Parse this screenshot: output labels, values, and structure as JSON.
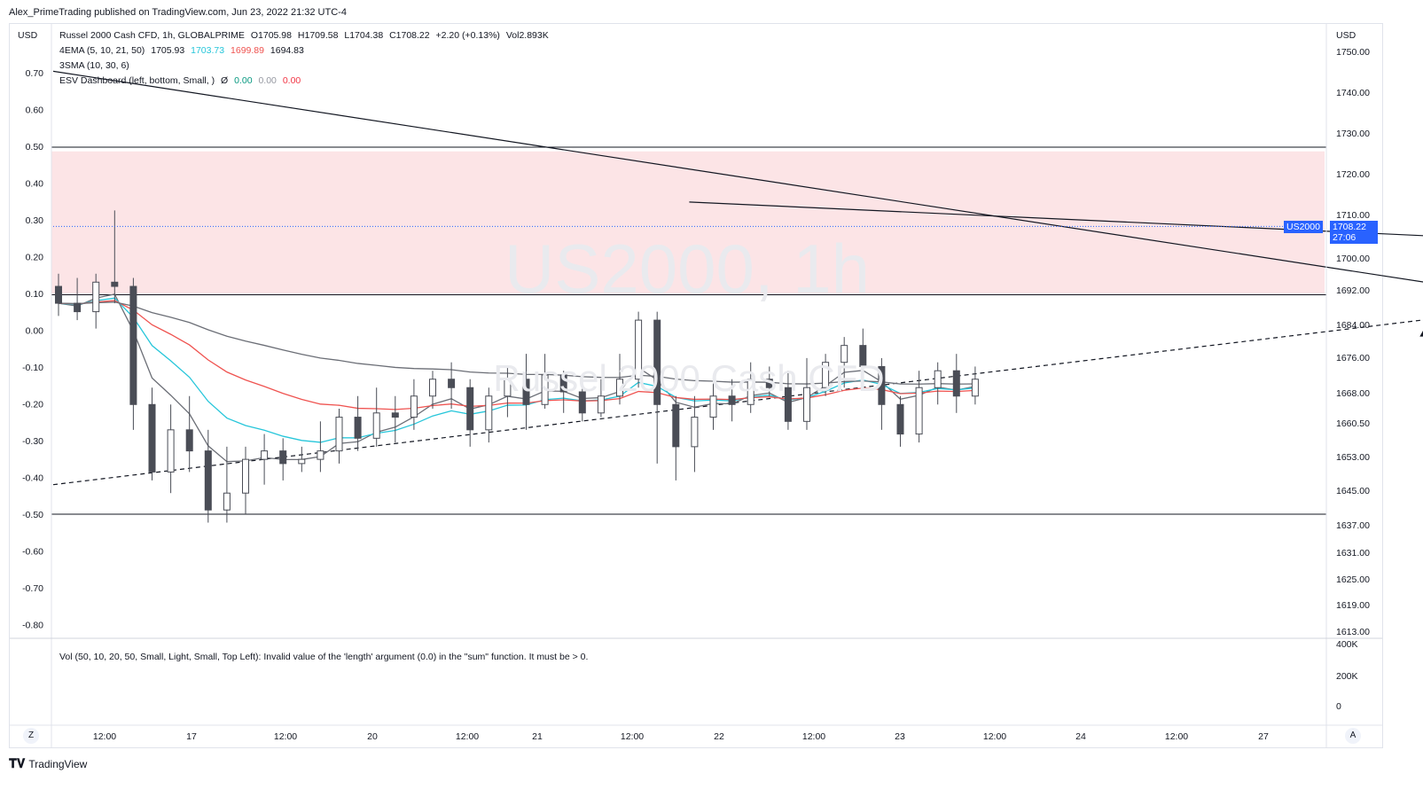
{
  "header": {
    "publish_line": "Alex_PrimeTrading published on TradingView.com, Jun 23, 2022 21:32 UTC-4"
  },
  "legend": {
    "title": "Russel 2000 Cash CFD, 1h, GLOBALPRIME",
    "open": "O1705.98",
    "high": "H1709.58",
    "low": "L1704.38",
    "close": "C1708.22",
    "change": "+2.20 (+0.13%)",
    "vol": "Vol2.893K",
    "ema_label": "4EMA (5, 10, 21, 50)",
    "ema_values": [
      "1705.93",
      "1703.73",
      "1699.89",
      "1694.83"
    ],
    "ema_colors": [
      "#131722",
      "#26c6da",
      "#ef5350",
      "#131722"
    ],
    "sma_label": "3SMA (10, 30, 6)",
    "esv_label": "ESV Dashboard (left, bottom, Small, )",
    "esv_symbol": "Ø",
    "esv_values": [
      "0.00",
      "0.00",
      "0.00"
    ],
    "esv_colors": [
      "#089981",
      "#9598a1",
      "#f23645"
    ]
  },
  "watermark": {
    "symbol": "US2000, 1h",
    "name": "Russel 2000 Cash CFD"
  },
  "left_axis": {
    "unit": "USD",
    "ticks": [
      "0.70",
      "0.60",
      "0.50",
      "0.40",
      "0.30",
      "0.20",
      "0.10",
      "0.00",
      "-0.10",
      "-0.20",
      "-0.30",
      "-0.40",
      "-0.50",
      "-0.60",
      "-0.70",
      "-0.80"
    ]
  },
  "right_axis": {
    "unit": "USD",
    "ticks": [
      "1750.00",
      "1740.00",
      "1730.00",
      "1720.00",
      "1710.00",
      "1700.00",
      "1692.00",
      "1684.00",
      "1676.00",
      "1668.00",
      "1660.50",
      "1653.00",
      "1645.00",
      "1637.00",
      "1631.00",
      "1625.00",
      "1619.00",
      "1613.00"
    ],
    "vol_ticks": [
      "400K",
      "200K",
      "0"
    ],
    "symbol_tag": "US2000",
    "price_tag": "1708.22",
    "countdown": "27:06"
  },
  "time_axis": {
    "labels": [
      "12:00",
      "17",
      "12:00",
      "20",
      "12:00",
      "21",
      "12:00",
      "22",
      "12:00",
      "23",
      "12:00",
      "24",
      "12:00",
      "27"
    ]
  },
  "volume_pane": {
    "message": "Vol (50, 10, 20, 50, Small, Light, Small, Top Left): Invalid value of the 'length' argument (0.0) in the \"sum\" function. It must be > 0."
  },
  "buttons": {
    "z": "Z",
    "a": "A"
  },
  "footer": {
    "brand": "TradingView"
  },
  "colors": {
    "zone_fill": "#fce4e6",
    "bull_candle": "#ffffff",
    "bear_candle": "#4a4d56",
    "ema_fast": "#26c6da",
    "ema_mid": "#ef5350",
    "ema_slow": "#6b6e76"
  },
  "chart_data": {
    "type": "candlestick",
    "symbol": "US2000",
    "timeframe": "1h",
    "ylim": [
      1611,
      1756
    ],
    "zone": [
      1692,
      1726
    ],
    "horizontal_lines": [
      1727,
      1692,
      1640
    ],
    "resistance_line": [
      [
        0,
        1745
      ],
      [
        95,
        1680
      ]
    ],
    "support_line": [
      [
        0,
        1647
      ],
      [
        86,
        1693
      ]
    ],
    "neckline": [
      [
        34,
        1714
      ],
      [
        78,
        1705
      ]
    ],
    "arrow_at": [
      73,
      1684
    ],
    "last_close": 1708.22,
    "candles": [
      [
        0,
        1694,
        1690,
        1697,
        1687
      ],
      [
        1,
        1690,
        1688,
        1696,
        1686
      ],
      [
        2,
        1688,
        1695,
        1697,
        1684
      ],
      [
        3,
        1695,
        1694,
        1712,
        1690
      ],
      [
        4,
        1694,
        1666,
        1696,
        1660
      ],
      [
        5,
        1666,
        1650,
        1670,
        1648
      ],
      [
        6,
        1650,
        1660,
        1666,
        1645
      ],
      [
        7,
        1660,
        1655,
        1668,
        1650
      ],
      [
        8,
        1655,
        1641,
        1660,
        1638
      ],
      [
        9,
        1641,
        1645,
        1656,
        1638
      ],
      [
        10,
        1645,
        1653,
        1656,
        1640
      ],
      [
        11,
        1653,
        1655,
        1659,
        1647
      ],
      [
        12,
        1655,
        1652,
        1658,
        1648
      ],
      [
        13,
        1652,
        1653,
        1656,
        1650
      ],
      [
        14,
        1653,
        1655,
        1662,
        1650
      ],
      [
        15,
        1655,
        1663,
        1665,
        1652
      ],
      [
        16,
        1663,
        1658,
        1668,
        1655
      ],
      [
        17,
        1658,
        1664,
        1670,
        1656
      ],
      [
        18,
        1664,
        1663,
        1668,
        1657
      ],
      [
        19,
        1663,
        1668,
        1672,
        1660
      ],
      [
        20,
        1668,
        1672,
        1674,
        1665
      ],
      [
        21,
        1672,
        1670,
        1676,
        1665
      ],
      [
        22,
        1670,
        1660,
        1672,
        1656
      ],
      [
        23,
        1660,
        1668,
        1670,
        1657
      ],
      [
        24,
        1668,
        1672,
        1675,
        1663
      ],
      [
        25,
        1672,
        1666,
        1678,
        1660
      ],
      [
        26,
        1666,
        1673,
        1678,
        1665
      ],
      [
        27,
        1673,
        1669,
        1674,
        1664
      ],
      [
        28,
        1669,
        1664,
        1672,
        1662
      ],
      [
        29,
        1664,
        1668,
        1672,
        1663
      ],
      [
        30,
        1668,
        1672,
        1678,
        1666
      ],
      [
        31,
        1672,
        1686,
        1688,
        1670
      ],
      [
        32,
        1686,
        1666,
        1688,
        1652
      ],
      [
        33,
        1666,
        1656,
        1668,
        1648
      ],
      [
        34,
        1656,
        1663,
        1668,
        1650
      ],
      [
        35,
        1663,
        1668,
        1671,
        1660
      ],
      [
        36,
        1668,
        1666,
        1672,
        1662
      ],
      [
        37,
        1666,
        1672,
        1676,
        1664
      ],
      [
        38,
        1672,
        1670,
        1675,
        1668
      ],
      [
        39,
        1670,
        1662,
        1674,
        1660
      ],
      [
        40,
        1662,
        1670,
        1677,
        1660
      ],
      [
        41,
        1670,
        1676,
        1678,
        1668
      ],
      [
        42,
        1676,
        1680,
        1682,
        1670
      ],
      [
        43,
        1680,
        1675,
        1684,
        1670
      ],
      [
        44,
        1675,
        1666,
        1677,
        1660
      ],
      [
        45,
        1666,
        1659,
        1668,
        1656
      ],
      [
        46,
        1659,
        1670,
        1674,
        1657
      ],
      [
        47,
        1670,
        1674,
        1676,
        1666
      ],
      [
        48,
        1674,
        1668,
        1678,
        1664
      ],
      [
        49,
        1668,
        1672,
        1675,
        1666
      ]
    ]
  }
}
